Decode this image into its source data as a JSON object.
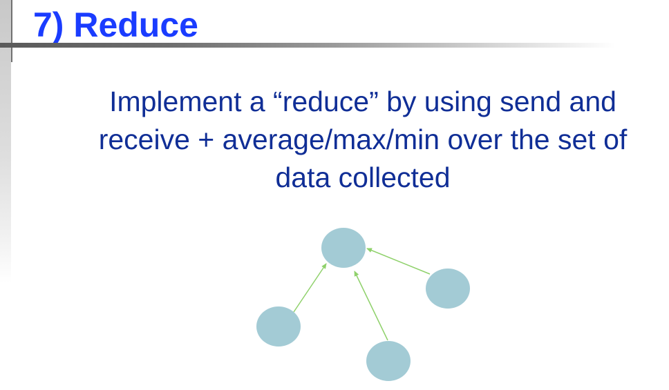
{
  "slide": {
    "title": "7) Reduce",
    "body_lines": [
      "Implement a “reduce” by using send and",
      "receive + average/max/min over the set of",
      "data collected"
    ]
  },
  "diagram": {
    "node_color": "#a3cbd5",
    "edge_color": "#8fd16b",
    "nodes": [
      "root-node",
      "right-node",
      "left-node",
      "bottom-node"
    ],
    "edges": [
      {
        "from": "right-node",
        "to": "root-node"
      },
      {
        "from": "left-node",
        "to": "root-node"
      },
      {
        "from": "bottom-node",
        "to": "root-node"
      }
    ]
  }
}
